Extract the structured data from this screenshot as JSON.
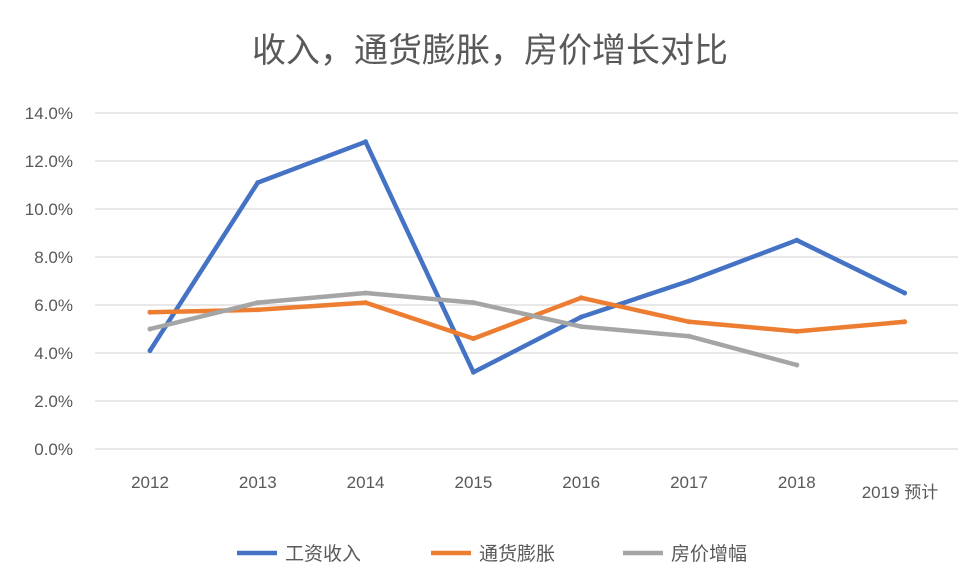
{
  "chart_data": {
    "type": "line",
    "title": "收入，通货膨胀，房价增长对比",
    "categories": [
      "2012",
      "2013",
      "2014",
      "2015",
      "2016",
      "2017",
      "2018",
      "2019 预计"
    ],
    "ylim": [
      0,
      14
    ],
    "yticks": [
      0,
      2,
      4,
      6,
      8,
      10,
      12,
      14
    ],
    "ytick_labels": [
      "0.0%",
      "2.0%",
      "4.0%",
      "6.0%",
      "8.0%",
      "10.0%",
      "12.0%",
      "14.0%"
    ],
    "grid": true,
    "legend": "bottom",
    "series": [
      {
        "name": "工资收入",
        "color": "#4472C4",
        "values": [
          4.1,
          11.1,
          12.8,
          3.2,
          5.5,
          7.0,
          8.7,
          6.5
        ]
      },
      {
        "name": "通货膨胀",
        "color": "#ED7D31",
        "values": [
          5.7,
          5.8,
          6.1,
          4.6,
          6.3,
          5.3,
          4.9,
          5.3
        ]
      },
      {
        "name": "房价增幅",
        "color": "#A5A5A5",
        "values": [
          5.0,
          6.1,
          6.5,
          6.1,
          5.1,
          4.7,
          3.5,
          null
        ]
      }
    ]
  }
}
